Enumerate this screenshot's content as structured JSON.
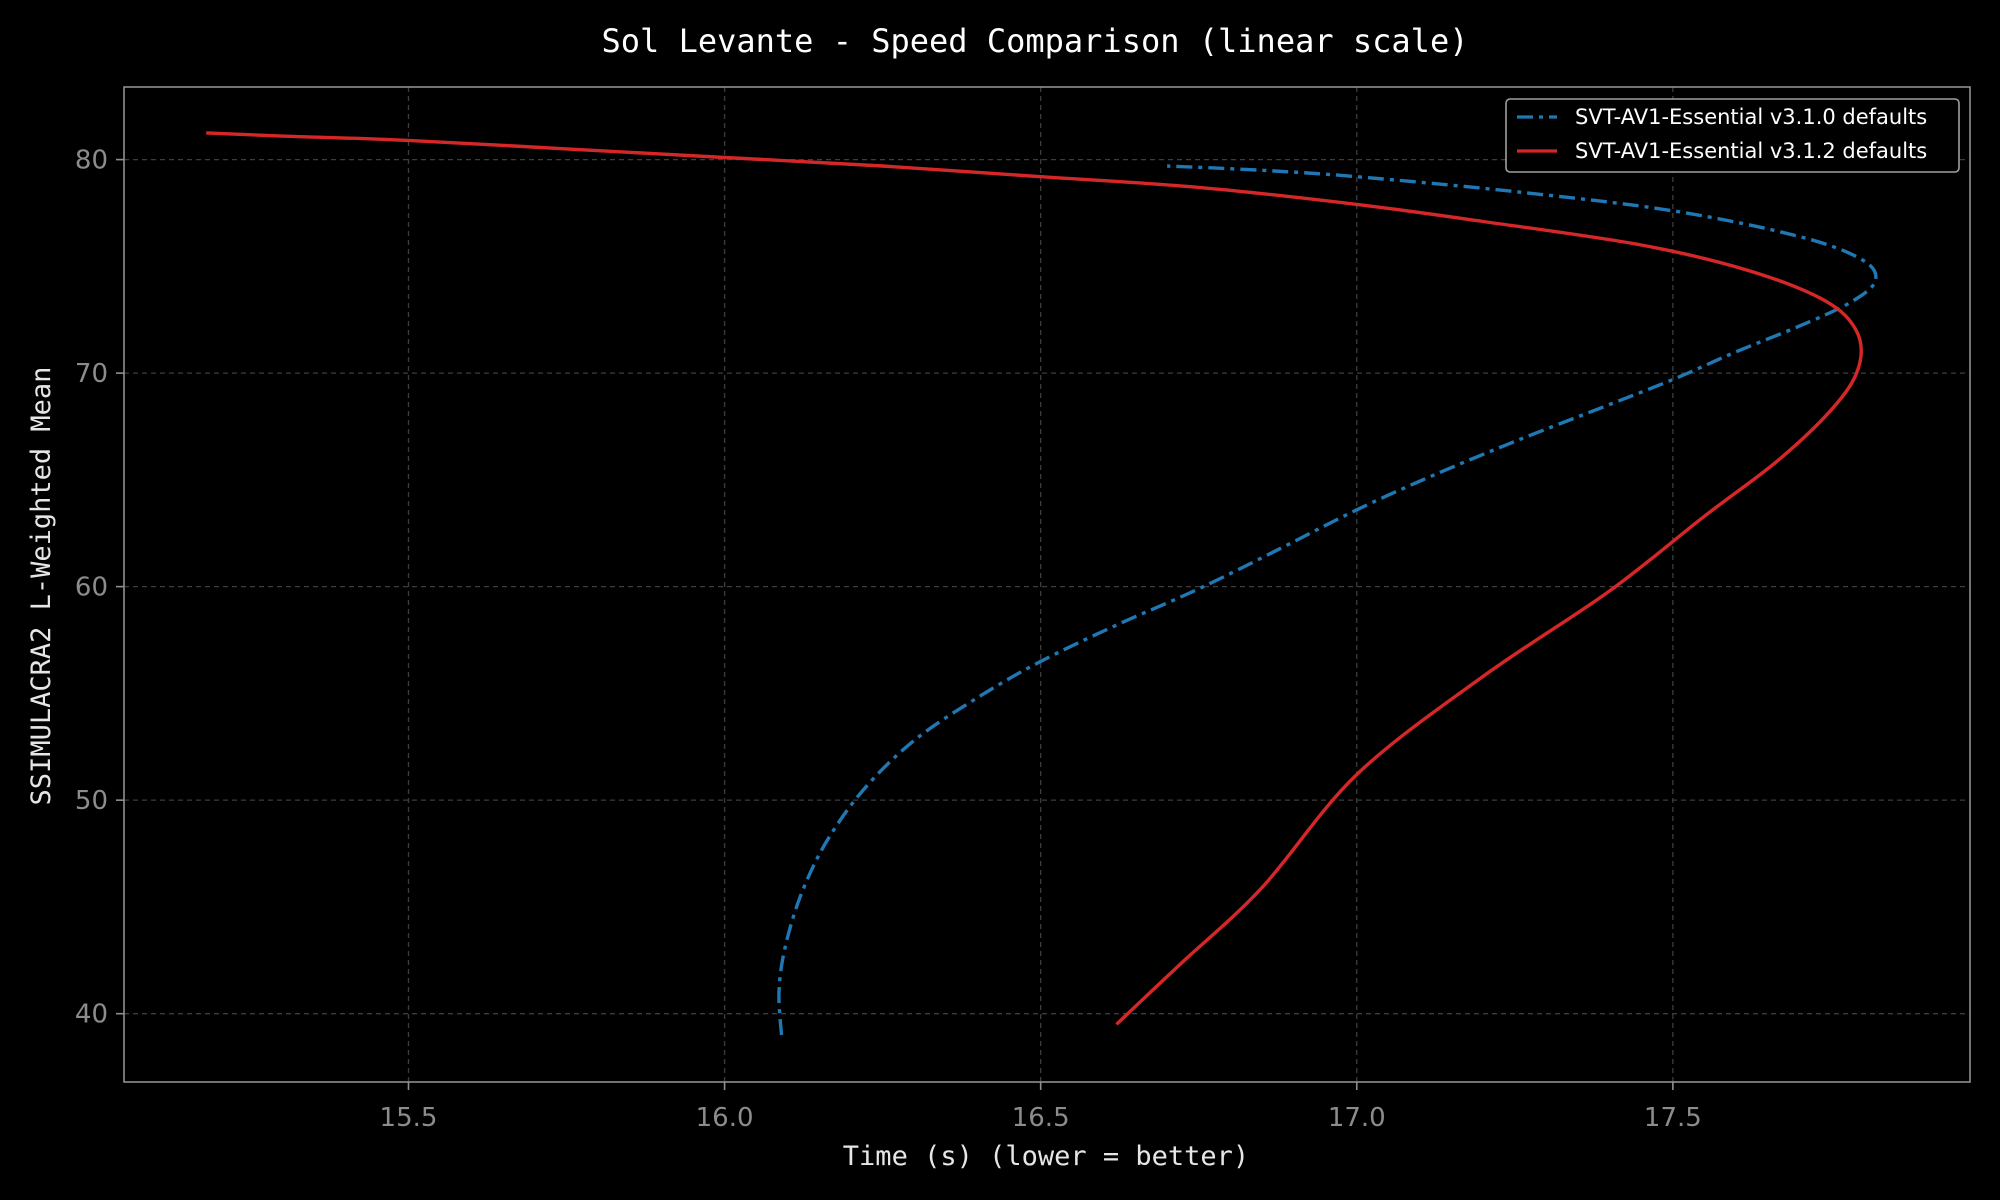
{
  "chart_data": {
    "type": "line",
    "title": "Sol Levante - Speed Comparison (linear scale)",
    "xlabel": "Time (s) (lower = better)",
    "ylabel": "SSIMULACRA2 L-Weighted Mean",
    "xlim": [
      15.05,
      17.97
    ],
    "ylim": [
      36.8,
      83.4
    ],
    "xticks": [
      15.5,
      16.0,
      16.5,
      17.0,
      17.5
    ],
    "xtick_labels": [
      "15.5",
      "16.0",
      "16.5",
      "17.0",
      "17.5"
    ],
    "yticks": [
      40,
      50,
      60,
      70,
      80
    ],
    "ytick_labels": [
      "40",
      "50",
      "60",
      "70",
      "80"
    ],
    "grid": true,
    "legend_position": "top-right",
    "series": [
      {
        "name": "SVT-AV1-Essential v3.1.0 defaults",
        "color": "#1f77b4",
        "line_style": "dash-dot",
        "points": [
          {
            "x": 16.09,
            "y": 39.0
          },
          {
            "x": 16.086,
            "y": 41.0
          },
          {
            "x": 16.095,
            "y": 43.0
          },
          {
            "x": 16.12,
            "y": 45.5
          },
          {
            "x": 16.16,
            "y": 48.0
          },
          {
            "x": 16.22,
            "y": 50.5
          },
          {
            "x": 16.3,
            "y": 52.8
          },
          {
            "x": 16.4,
            "y": 54.8
          },
          {
            "x": 16.5,
            "y": 56.5
          },
          {
            "x": 16.62,
            "y": 58.2
          },
          {
            "x": 16.75,
            "y": 59.9
          },
          {
            "x": 16.88,
            "y": 61.8
          },
          {
            "x": 17.0,
            "y": 63.6
          },
          {
            "x": 17.12,
            "y": 65.2
          },
          {
            "x": 17.25,
            "y": 66.8
          },
          {
            "x": 17.38,
            "y": 68.3
          },
          {
            "x": 17.5,
            "y": 69.7
          },
          {
            "x": 17.6,
            "y": 71.0
          },
          {
            "x": 17.7,
            "y": 72.2
          },
          {
            "x": 17.78,
            "y": 73.3
          },
          {
            "x": 17.82,
            "y": 74.3
          },
          {
            "x": 17.8,
            "y": 75.3
          },
          {
            "x": 17.7,
            "y": 76.4
          },
          {
            "x": 17.5,
            "y": 77.6
          },
          {
            "x": 17.25,
            "y": 78.5
          },
          {
            "x": 17.0,
            "y": 79.2
          },
          {
            "x": 16.85,
            "y": 79.5
          },
          {
            "x": 16.7,
            "y": 79.7
          }
        ]
      },
      {
        "name": "SVT-AV1-Essential v3.1.2 defaults",
        "color": "#d62728",
        "line_style": "solid",
        "points": [
          {
            "x": 16.62,
            "y": 39.5
          },
          {
            "x": 16.72,
            "y": 42.3
          },
          {
            "x": 16.85,
            "y": 45.9
          },
          {
            "x": 17.0,
            "y": 51.2
          },
          {
            "x": 17.2,
            "y": 55.8
          },
          {
            "x": 17.4,
            "y": 59.8
          },
          {
            "x": 17.55,
            "y": 63.3
          },
          {
            "x": 17.67,
            "y": 66.0
          },
          {
            "x": 17.76,
            "y": 68.6
          },
          {
            "x": 17.795,
            "y": 70.4
          },
          {
            "x": 17.79,
            "y": 72.0
          },
          {
            "x": 17.74,
            "y": 73.4
          },
          {
            "x": 17.62,
            "y": 74.8
          },
          {
            "x": 17.45,
            "y": 76.0
          },
          {
            "x": 17.2,
            "y": 77.1
          },
          {
            "x": 17.0,
            "y": 77.9
          },
          {
            "x": 16.75,
            "y": 78.7
          },
          {
            "x": 16.5,
            "y": 79.2
          },
          {
            "x": 16.25,
            "y": 79.7
          },
          {
            "x": 16.0,
            "y": 80.1
          },
          {
            "x": 15.75,
            "y": 80.5
          },
          {
            "x": 15.5,
            "y": 80.9
          },
          {
            "x": 15.3,
            "y": 81.1
          },
          {
            "x": 15.18,
            "y": 81.25
          }
        ]
      }
    ]
  }
}
